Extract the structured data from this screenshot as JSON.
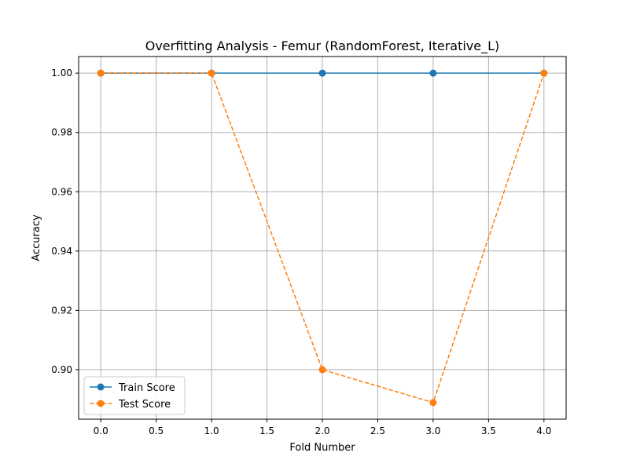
{
  "chart_data": {
    "type": "line",
    "title": "Overfitting Analysis - Femur (RandomForest, Iterative_L)",
    "xlabel": "Fold Number",
    "ylabel": "Accuracy",
    "x": [
      0,
      1,
      2,
      3,
      4
    ],
    "xlim": [
      -0.2,
      4.2
    ],
    "ylim": [
      0.8833,
      1.0056
    ],
    "xticks": [
      0.0,
      0.5,
      1.0,
      1.5,
      2.0,
      2.5,
      3.0,
      3.5,
      4.0
    ],
    "xtick_labels": [
      "0.0",
      "0.5",
      "1.0",
      "1.5",
      "2.0",
      "2.5",
      "3.0",
      "3.5",
      "4.0"
    ],
    "yticks": [
      0.9,
      0.92,
      0.94,
      0.96,
      0.98,
      1.0
    ],
    "ytick_labels": [
      "0.90",
      "0.92",
      "0.94",
      "0.96",
      "0.98",
      "1.00"
    ],
    "grid": true,
    "legend_position": "lower-left",
    "series": [
      {
        "name": "Train Score",
        "values": [
          1.0,
          1.0,
          1.0,
          1.0,
          1.0
        ],
        "color": "#1f77b4",
        "linestyle": "solid",
        "marker": "circle"
      },
      {
        "name": "Test Score",
        "values": [
          1.0,
          1.0,
          0.9,
          0.8889,
          1.0
        ],
        "color": "#ff7f0e",
        "linestyle": "dashed",
        "marker": "circle"
      }
    ]
  }
}
